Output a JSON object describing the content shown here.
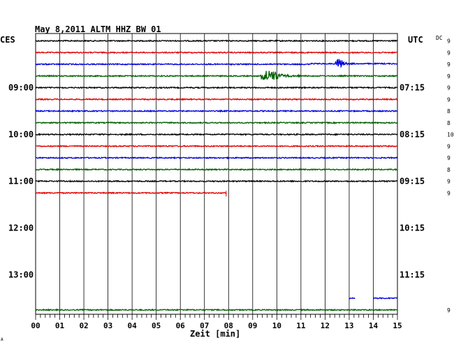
{
  "chart_data": {
    "type": "line",
    "title": "May 8,2011   ALTM HHZ BW 01",
    "left_axis_label": "CES",
    "right_axis_label": "UTC",
    "dc_label": "DC",
    "xlabel": "Zeit [min]",
    "corner_mark": "A",
    "x_ticks": [
      "00",
      "01",
      "02",
      "03",
      "04",
      "05",
      "06",
      "07",
      "08",
      "09",
      "10",
      "11",
      "12",
      "13",
      "14",
      "15"
    ],
    "xlim": [
      0,
      15
    ],
    "left_hour_labels": [
      {
        "row": 4,
        "label": "09:00"
      },
      {
        "row": 8,
        "label": "10:00"
      },
      {
        "row": 12,
        "label": "11:00"
      },
      {
        "row": 16,
        "label": "12:00"
      },
      {
        "row": 20,
        "label": "13:00"
      }
    ],
    "right_hour_labels": [
      {
        "row": 4,
        "label": "07:15"
      },
      {
        "row": 8,
        "label": "08:15"
      },
      {
        "row": 12,
        "label": "09:15"
      },
      {
        "row": 16,
        "label": "10:15"
      },
      {
        "row": 20,
        "label": "11:15"
      }
    ],
    "row_interval_min": 15,
    "colors": [
      "#000000",
      "#e00000",
      "#0000dd",
      "#006000"
    ],
    "traces": [
      {
        "row": 0,
        "color": "#000000",
        "end_min": 15,
        "dc": "9"
      },
      {
        "row": 1,
        "color": "#e00000",
        "end_min": 15,
        "dc": "9"
      },
      {
        "row": 2,
        "color": "#0000dd",
        "end_min": 15,
        "dc": "9",
        "offset": {
          "from_min": 11.4,
          "to_min": 15,
          "value": 0.5
        },
        "events": [
          {
            "start_min": 12.4,
            "amplitude": 9,
            "duration_min": 1.0
          }
        ]
      },
      {
        "row": 3,
        "color": "#006000",
        "end_min": 15,
        "dc": "9",
        "events": [
          {
            "start_min": 9.3,
            "amplitude": 13,
            "duration_min": 2.0
          }
        ]
      },
      {
        "row": 4,
        "color": "#000000",
        "end_min": 15,
        "dc": "9"
      },
      {
        "row": 5,
        "color": "#e00000",
        "end_min": 15,
        "dc": "9"
      },
      {
        "row": 6,
        "color": "#0000dd",
        "end_min": 15,
        "dc": "8"
      },
      {
        "row": 7,
        "color": "#006000",
        "end_min": 15,
        "dc": "8"
      },
      {
        "row": 8,
        "color": "#000000",
        "end_min": 15,
        "dc": "10"
      },
      {
        "row": 9,
        "color": "#e00000",
        "end_min": 15,
        "dc": "9"
      },
      {
        "row": 10,
        "color": "#0000dd",
        "end_min": 15,
        "dc": "9"
      },
      {
        "row": 11,
        "color": "#006000",
        "end_min": 15,
        "dc": "8"
      },
      {
        "row": 12,
        "color": "#000000",
        "end_min": 15,
        "dc": "9"
      },
      {
        "row": 13,
        "color": "#e00000",
        "end_min": 7.9,
        "dc": "9"
      }
    ],
    "extra_traces": [
      {
        "row": 23,
        "color": "#006000",
        "from_min": 0,
        "to_min": 15,
        "dc": "9"
      },
      {
        "row": 22,
        "color": "#0000dd",
        "from_min": 13.0,
        "to_min": 13.25
      },
      {
        "row": 22,
        "color": "#0000dd",
        "from_min": 14.0,
        "to_min": 15
      }
    ]
  }
}
